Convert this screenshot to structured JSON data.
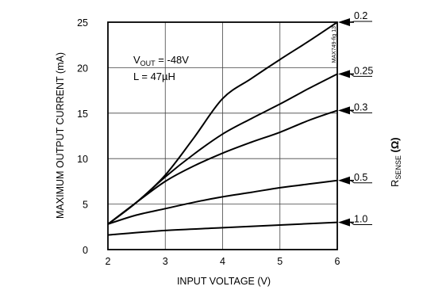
{
  "chart_data": {
    "type": "line",
    "xlabel": "INPUT VOLTAGE (V)",
    "ylabel": "MAXIMUM OUTPUT CURRENT (mA)",
    "xlim": [
      2,
      6
    ],
    "ylim": [
      0,
      25
    ],
    "xticks": [
      "2",
      "3",
      "4",
      "5",
      "6"
    ],
    "yticks": [
      "0",
      "5",
      "10",
      "15",
      "20",
      "25"
    ],
    "grid": true,
    "annotation": {
      "line1_prefix": "V",
      "line1_sub": "OUT",
      "line1_suffix": " = -48V",
      "line2": "L = 47µH"
    },
    "figure_id": "MAX749-fig 13",
    "right_axis_label": {
      "main": "R",
      "sub": "SENSE",
      "unit": " (Ω)"
    },
    "series": [
      {
        "name": "0.2",
        "x": [
          2,
          2.5,
          3,
          3.5,
          4,
          4.5,
          5,
          5.5,
          6
        ],
        "y": [
          2.8,
          5.2,
          8.2,
          12.3,
          16.6,
          18.8,
          20.9,
          22.9,
          25.0
        ]
      },
      {
        "name": "0.25",
        "x": [
          2,
          2.5,
          3,
          3.5,
          4,
          4.5,
          5,
          5.5,
          6
        ],
        "y": [
          2.8,
          5.2,
          8.0,
          10.5,
          12.7,
          14.4,
          16.0,
          17.7,
          19.3
        ]
      },
      {
        "name": "0.3",
        "x": [
          2,
          2.5,
          3,
          3.5,
          4,
          4.5,
          5,
          5.5,
          6
        ],
        "y": [
          2.8,
          5.2,
          7.5,
          9.2,
          10.6,
          11.8,
          12.9,
          14.2,
          15.3
        ]
      },
      {
        "name": "0.5",
        "x": [
          2,
          2.5,
          3,
          3.5,
          4,
          4.5,
          5,
          5.5,
          6
        ],
        "y": [
          2.8,
          3.8,
          4.5,
          5.2,
          5.8,
          6.3,
          6.8,
          7.2,
          7.6
        ]
      },
      {
        "name": "1.0",
        "x": [
          2,
          3,
          4,
          5,
          6
        ],
        "y": [
          1.6,
          2.1,
          2.4,
          2.7,
          3.0
        ]
      }
    ]
  }
}
